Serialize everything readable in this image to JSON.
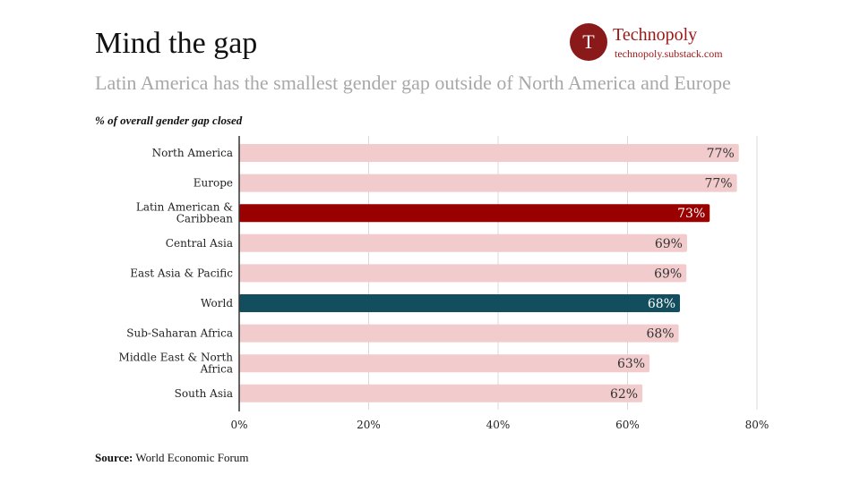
{
  "header": {
    "title": "Mind the gap",
    "subtitle": "Latin America has the smallest gender gap outside of North America and Europe"
  },
  "brand": {
    "logo_letter": "T",
    "name": "Technopoly",
    "url": "technopoly.substack.com"
  },
  "footer": {
    "source_label": "Source:",
    "source_text": "World Economic Forum"
  },
  "colors": {
    "default_bar": "#f2cccc",
    "highlight_bar": "#990000",
    "world_bar": "#134e5e",
    "brand": "#9b1717"
  },
  "chart_data": {
    "type": "bar",
    "orientation": "horizontal",
    "ylabel": "% of overall gender gap closed",
    "categories": [
      "North America",
      "Europe",
      "Latin American & Caribbean",
      "Central Asia",
      "East Asia & Pacific",
      "World",
      "Sub-Saharan Africa",
      "Middle East & North Africa",
      "South Asia"
    ],
    "category_lines": [
      [
        "North America"
      ],
      [
        "Europe"
      ],
      [
        "Latin American &",
        "Caribbean"
      ],
      [
        "Central Asia"
      ],
      [
        "East Asia & Pacific"
      ],
      [
        "World"
      ],
      [
        "Sub-Saharan Africa"
      ],
      [
        "Middle East & North",
        "Africa"
      ],
      [
        "South Asia"
      ]
    ],
    "values": [
      77.2,
      76.9,
      72.7,
      69.2,
      69.1,
      68.1,
      67.9,
      63.4,
      62.3
    ],
    "value_labels": [
      "77%",
      "77%",
      "73%",
      "69%",
      "69%",
      "68%",
      "68%",
      "63%",
      "62%"
    ],
    "highlight": [
      "default",
      "default",
      "highlight",
      "default",
      "default",
      "world",
      "default",
      "default",
      "default"
    ],
    "xlim": [
      0,
      80
    ],
    "xticks": [
      0,
      20,
      40,
      60,
      80
    ],
    "xtick_labels": [
      "0%",
      "20%",
      "40%",
      "60%",
      "80%"
    ],
    "grid": true
  }
}
